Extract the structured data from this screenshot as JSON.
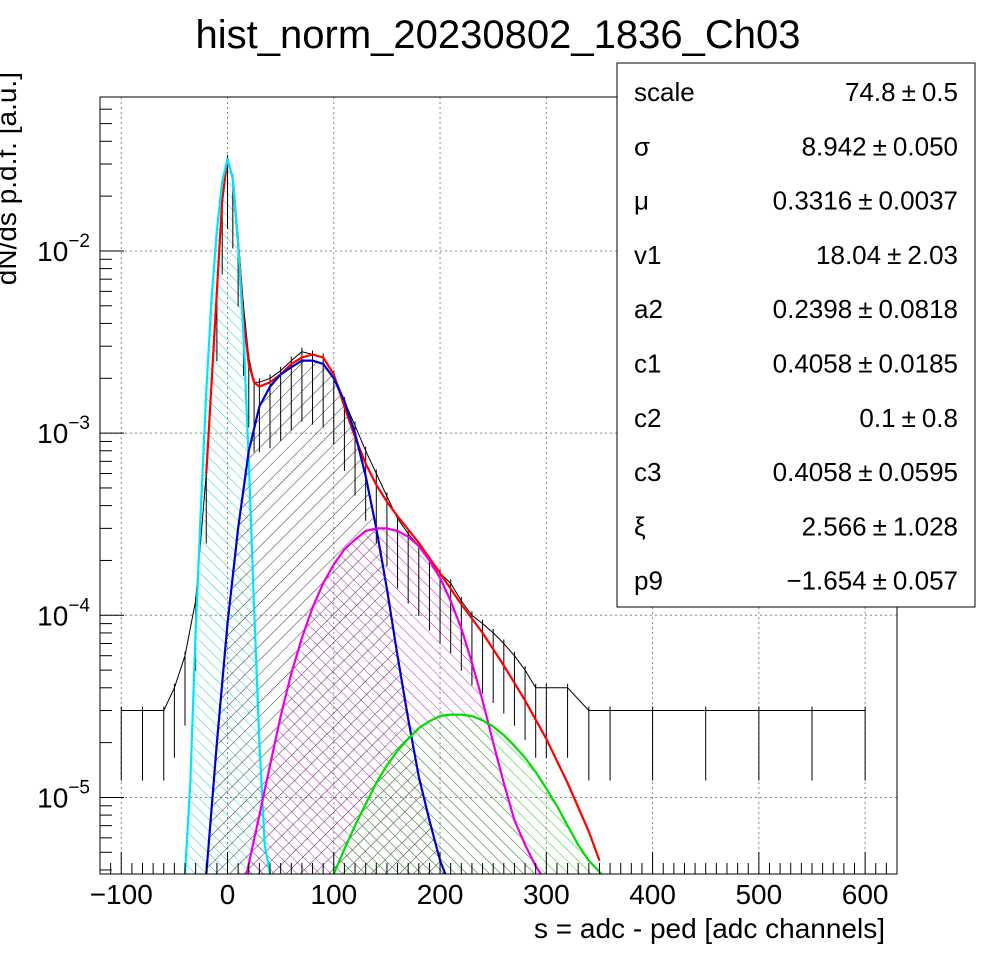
{
  "chart_data": {
    "type": "line",
    "title": "hist_norm_20230802_1836_Ch03",
    "xlabel": "s = adc - ped [adc channels]",
    "ylabel": "dN/ds p.d.f. [a.u.]",
    "xlim": [
      -120,
      630
    ],
    "ylim": [
      3.8e-06,
      0.07
    ],
    "y_scale": "log",
    "grid": true,
    "x_ticks": [
      {
        "value": -100,
        "label": "−100"
      },
      {
        "value": 0,
        "label": "0"
      },
      {
        "value": 100,
        "label": "100"
      },
      {
        "value": 200,
        "label": "200"
      },
      {
        "value": 300,
        "label": "300"
      },
      {
        "value": 400,
        "label": "400"
      },
      {
        "value": 500,
        "label": "500"
      },
      {
        "value": 600,
        "label": "600"
      }
    ],
    "y_ticks": [
      {
        "value": 1e-05,
        "base": "10",
        "exp": "−5"
      },
      {
        "value": 0.0001,
        "base": "10",
        "exp": "−4"
      },
      {
        "value": 0.001,
        "base": "10",
        "exp": "−3"
      },
      {
        "value": 0.01,
        "base": "10",
        "exp": "−2"
      }
    ],
    "data_points": {
      "x": [
        -100,
        -80,
        -60,
        -50,
        -40,
        -30,
        -20,
        -10,
        -5,
        0,
        5,
        10,
        15,
        20,
        25,
        30,
        40,
        50,
        60,
        70,
        80,
        90,
        100,
        110,
        120,
        130,
        140,
        150,
        160,
        170,
        180,
        190,
        200,
        210,
        220,
        230,
        240,
        250,
        260,
        270,
        280,
        290,
        300,
        320,
        340,
        360,
        400,
        450,
        500,
        550,
        600
      ],
      "y": [
        3e-05,
        3e-05,
        3e-05,
        4e-05,
        6e-05,
        0.00012,
        0.0006,
        0.006,
        0.018,
        0.032,
        0.025,
        0.012,
        0.005,
        0.0026,
        0.0019,
        0.0019,
        0.002,
        0.0022,
        0.0025,
        0.0028,
        0.0027,
        0.0026,
        0.0021,
        0.0015,
        0.0011,
        0.0008,
        0.0006,
        0.00045,
        0.00034,
        0.00028,
        0.00024,
        0.0002,
        0.00017,
        0.00015,
        0.00012,
        0.0001,
        9e-05,
        8e-05,
        7e-05,
        6e-05,
        5e-05,
        4e-05,
        4e-05,
        4e-05,
        3e-05,
        3e-05,
        3e-05,
        3e-05,
        3e-05,
        3e-05,
        3e-05
      ]
    },
    "series": [
      {
        "color": "#ff0000",
        "x": [
          -20,
          -10,
          -5,
          0,
          5,
          10,
          15,
          20,
          25,
          30,
          40,
          50,
          60,
          70,
          80,
          90,
          100,
          110,
          120,
          130,
          140,
          150,
          160,
          180,
          200,
          220,
          240,
          260,
          280,
          300,
          320,
          340,
          350
        ],
        "y": [
          0.0006,
          0.006,
          0.019,
          0.032,
          0.025,
          0.011,
          0.0042,
          0.0024,
          0.0019,
          0.0018,
          0.0019,
          0.0021,
          0.0024,
          0.0026,
          0.0027,
          0.0026,
          0.0021,
          0.0014,
          0.00095,
          0.00068,
          0.00052,
          0.00042,
          0.00035,
          0.00025,
          0.00017,
          0.000115,
          8e-05,
          5.3e-05,
          3.4e-05,
          2.1e-05,
          1.2e-05,
          6.5e-06,
          4.5e-06
        ]
      },
      {
        "color": "#00e5ff",
        "fill": "#00cccc",
        "x": [
          -40,
          -35,
          -30,
          -25,
          -20,
          -15,
          -10,
          -5,
          0,
          5,
          10,
          15,
          20,
          25,
          30,
          35,
          40
        ],
        "y": [
          3.8e-06,
          1.2e-05,
          8e-05,
          0.0004,
          0.0017,
          0.0055,
          0.013,
          0.024,
          0.032,
          0.025,
          0.011,
          0.0035,
          0.0007,
          0.00011,
          2e-05,
          5.5e-06,
          3.8e-06
        ]
      },
      {
        "color": "#0000cc",
        "fill": "#000000",
        "x": [
          -20,
          -10,
          0,
          10,
          20,
          30,
          40,
          50,
          60,
          70,
          80,
          90,
          100,
          110,
          120,
          130,
          140,
          150,
          160,
          170,
          180,
          190,
          200,
          205
        ],
        "y": [
          3.8e-06,
          2e-05,
          9e-05,
          0.0003,
          0.0008,
          0.0014,
          0.0018,
          0.0021,
          0.0023,
          0.0025,
          0.0025,
          0.0024,
          0.002,
          0.0015,
          0.001,
          0.00058,
          0.0003,
          0.00014,
          6e-05,
          2.7e-05,
          1.3e-05,
          7.5e-06,
          4.5e-06,
          3.8e-06
        ]
      },
      {
        "color": "#e600e6",
        "fill": "#cc00cc",
        "x": [
          18,
          30,
          40,
          50,
          60,
          70,
          80,
          90,
          100,
          110,
          120,
          130,
          140,
          150,
          160,
          170,
          180,
          190,
          200,
          210,
          220,
          230,
          240,
          250,
          260,
          270,
          280,
          290,
          295
        ],
        "y": [
          3.8e-06,
          8e-06,
          1.5e-05,
          2.8e-05,
          4.8e-05,
          7.5e-05,
          0.00011,
          0.00015,
          0.00019,
          0.00023,
          0.00026,
          0.00029,
          0.0003,
          0.0003,
          0.00029,
          0.00027,
          0.00024,
          0.0002,
          0.00016,
          0.00012,
          8.5e-05,
          5.5e-05,
          3.4e-05,
          2e-05,
          1.2e-05,
          7.5e-06,
          5.5e-06,
          4.2e-06,
          3.8e-06
        ]
      },
      {
        "color": "#00dd00",
        "fill": "#00cc00",
        "x": [
          100,
          110,
          120,
          130,
          140,
          150,
          160,
          170,
          180,
          190,
          200,
          210,
          220,
          230,
          240,
          250,
          260,
          270,
          280,
          290,
          300,
          310,
          320,
          330,
          340,
          350,
          352
        ],
        "y": [
          3.8e-06,
          5.2e-06,
          7e-06,
          9.2e-06,
          1.2e-05,
          1.5e-05,
          1.8e-05,
          2.1e-05,
          2.4e-05,
          2.62e-05,
          2.8e-05,
          2.85e-05,
          2.85e-05,
          2.8e-05,
          2.65e-05,
          2.45e-05,
          2.2e-05,
          1.92e-05,
          1.65e-05,
          1.38e-05,
          1.12e-05,
          9e-06,
          7e-06,
          5.5e-06,
          4.5e-06,
          3.9e-06,
          3.8e-06
        ]
      }
    ]
  },
  "stats_box": {
    "rows": [
      {
        "name": "scale",
        "value": "74.8",
        "error": "0.5"
      },
      {
        "name": "σ",
        "value": "8.942",
        "error": "0.050"
      },
      {
        "name": "μ",
        "value": "0.3316",
        "error": "0.0037"
      },
      {
        "name": "v1",
        "value": "18.04",
        "error": "2.03"
      },
      {
        "name": "a2",
        "value": "0.2398",
        "error": "0.0818"
      },
      {
        "name": "c1",
        "value": "0.4058",
        "error": "0.0185"
      },
      {
        "name": "c2",
        "value": "0.1",
        "error": "0.8"
      },
      {
        "name": "c3",
        "value": "0.4058",
        "error": "0.0595"
      },
      {
        "name": "ξ",
        "value": "2.566",
        "error": "1.028"
      },
      {
        "name": "p9",
        "value": "−1.654",
        "error": "0.057"
      }
    ],
    "pm_symbol": "±"
  }
}
